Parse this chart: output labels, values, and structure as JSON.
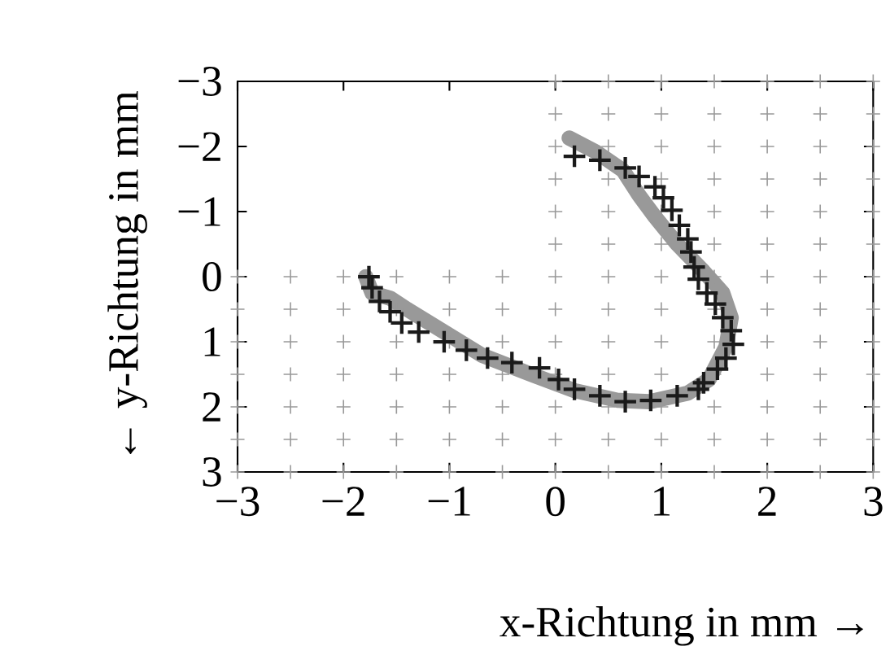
{
  "chart_data": {
    "type": "line",
    "xlabel": "x-Richtung in mm →",
    "ylabel": "← y-Richtung in mm",
    "xlim": [
      -3,
      3
    ],
    "ylim": [
      3,
      -3
    ],
    "xticks": [
      {
        "value": -3,
        "label": "−3"
      },
      {
        "value": -2,
        "label": "−2"
      },
      {
        "value": -1,
        "label": "−1"
      },
      0,
      1,
      2,
      3
    ],
    "yticks": [
      {
        "value": -3,
        "label": "−3"
      },
      {
        "value": -2,
        "label": "−2"
      },
      {
        "value": -1,
        "label": "−1"
      },
      0,
      1,
      2,
      3
    ],
    "series": [
      {
        "type": "scatter",
        "marker": "cross",
        "color": "#999999",
        "x": [
          -3,
          -2.5,
          -2,
          -1.5,
          -1,
          -0.5,
          0,
          0.5,
          1,
          1.5,
          2,
          2.5,
          3,
          -3,
          -2.5,
          -2,
          -1.5,
          -1,
          -0.5,
          0,
          0.5,
          1,
          1.5,
          2,
          2.5,
          3,
          -3,
          -2.5,
          -2,
          -1.5,
          -1,
          -0.5,
          0,
          0.5,
          1,
          1.5,
          2,
          2.5,
          3,
          -3,
          -2.5,
          -2,
          -1.5,
          -1,
          -0.5,
          0,
          0.5,
          1,
          1.5,
          2,
          2.5,
          3,
          -3,
          -2.5,
          -2,
          -1.5,
          -1,
          -0.5,
          0,
          0.5,
          1,
          1.5,
          2,
          2.5,
          3,
          -3,
          -2.5,
          -2,
          -1.5,
          -1,
          -0.5,
          0,
          0.5,
          1,
          1.5,
          2,
          2.5,
          3,
          -3,
          -2.5,
          -2,
          -1.5,
          -1,
          -0.5,
          0,
          0.5,
          1,
          1.5,
          2,
          2.5,
          3,
          0,
          0.5,
          1,
          1.5,
          2,
          2.5,
          3,
          0,
          0.5,
          1,
          1.5,
          2,
          2.5,
          3,
          0,
          0.5,
          1,
          1.5,
          2,
          2.5,
          3,
          0,
          0.5,
          1,
          1.5,
          2,
          2.5,
          3,
          0,
          0.5,
          1,
          1.5,
          2,
          2.5,
          3,
          0,
          0.5,
          1,
          1.5,
          2,
          2.5,
          3
        ],
        "values": [
          0,
          0,
          0,
          0,
          0,
          0,
          0,
          0,
          0,
          0,
          0,
          0,
          0,
          0.5,
          0.5,
          0.5,
          0.5,
          0.5,
          0.5,
          0.5,
          0.5,
          0.5,
          0.5,
          0.5,
          0.5,
          0.5,
          1,
          1,
          1,
          1,
          1,
          1,
          1,
          1,
          1,
          1,
          1,
          1,
          1,
          1.5,
          1.5,
          1.5,
          1.5,
          1.5,
          1.5,
          1.5,
          1.5,
          1.5,
          1.5,
          1.5,
          1.5,
          1.5,
          2,
          2,
          2,
          2,
          2,
          2,
          2,
          2,
          2,
          2,
          2,
          2,
          2,
          2.5,
          2.5,
          2.5,
          2.5,
          2.5,
          2.5,
          2.5,
          2.5,
          2.5,
          2.5,
          2.5,
          2.5,
          2.5,
          3,
          3,
          3,
          3,
          3,
          3,
          3,
          3,
          3,
          3,
          3,
          3,
          3,
          -0.5,
          -0.5,
          -0.5,
          -0.5,
          -0.5,
          -0.5,
          -0.5,
          -1,
          -1,
          -1,
          -1,
          -1,
          -1,
          -1,
          -1.5,
          -1.5,
          -1.5,
          -1.5,
          -1.5,
          -1.5,
          -1.5,
          -2,
          -2,
          -2,
          -2,
          -2,
          -2,
          -2,
          -2.5,
          -2.5,
          -2.5,
          -2.5,
          -2.5,
          -2.5,
          -2.5,
          -3,
          -3,
          -3,
          -3,
          -3,
          -3,
          -3
        ]
      },
      {
        "marker": "none",
        "line_style": "solid",
        "color": "#999999",
        "x": [
          0.13,
          0.38,
          0.64,
          0.79,
          0.94,
          1.15,
          1.4,
          1.58,
          1.66,
          1.61,
          1.45,
          1.25,
          0.89,
          0.59,
          0.18,
          -0.23,
          -0.69,
          -1.15,
          -1.4,
          -1.56,
          -1.73,
          -1.79
        ],
        "values": [
          -2.13,
          -1.92,
          -1.63,
          -1.25,
          -0.92,
          -0.5,
          -0.08,
          0.25,
          0.63,
          1.08,
          1.58,
          1.79,
          1.92,
          1.9,
          1.75,
          1.5,
          1.21,
          0.75,
          0.5,
          0.33,
          0.25,
          0
        ]
      },
      {
        "type": "scatter",
        "marker": "cross",
        "color": "#1a1a1a",
        "x": [
          0.18,
          0.42,
          0.66,
          0.79,
          0.94,
          1.02,
          1.1,
          1.17,
          1.25,
          1.28,
          1.31,
          1.35,
          1.43,
          1.51,
          1.58,
          1.66,
          1.68,
          1.61,
          1.53,
          1.4,
          1.35,
          1.15,
          0.9,
          0.66,
          0.42,
          0.18,
          0.03,
          -0.15,
          -0.41,
          -0.64,
          -0.84,
          -1.05,
          -1.29,
          -1.45,
          -1.56,
          -1.66,
          -1.73,
          -1.76
        ],
        "values": [
          -1.85,
          -1.79,
          -1.67,
          -1.54,
          -1.38,
          -1.21,
          -1.02,
          -0.79,
          -0.58,
          -0.38,
          -0.15,
          0.04,
          0.25,
          0.42,
          0.63,
          0.83,
          1.04,
          1.25,
          1.42,
          1.63,
          1.73,
          1.83,
          1.9,
          1.92,
          1.83,
          1.73,
          1.58,
          1.4,
          1.32,
          1.25,
          1.13,
          1.0,
          0.85,
          0.71,
          0.54,
          0.38,
          0.17,
          0.0
        ]
      }
    ]
  }
}
